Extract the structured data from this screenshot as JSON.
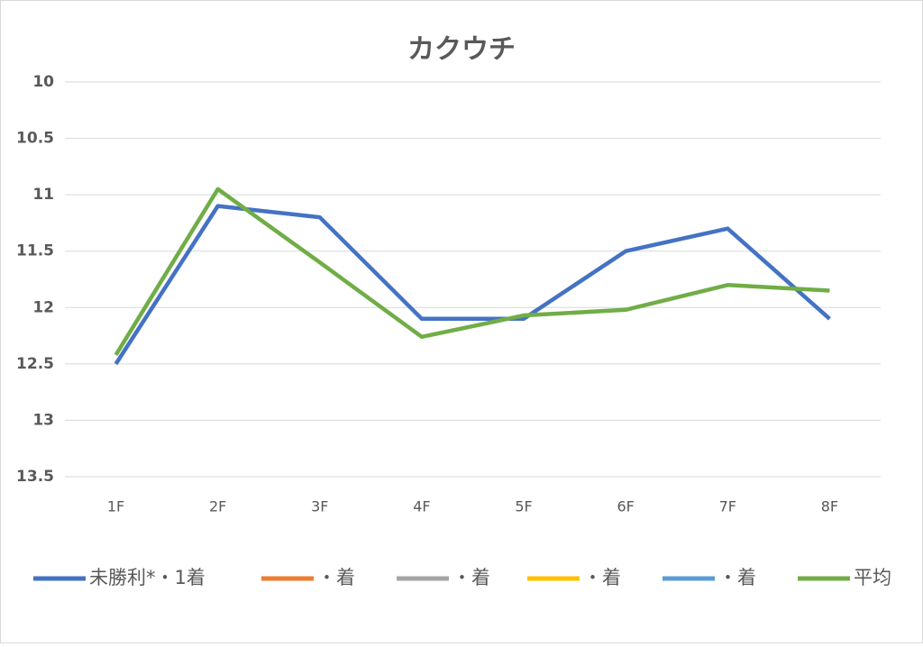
{
  "chart_data": {
    "type": "line",
    "title": "カクウチ",
    "categories": [
      "1F",
      "2F",
      "3F",
      "4F",
      "5F",
      "6F",
      "7F",
      "8F"
    ],
    "series": [
      {
        "name": "未勝利*・1着",
        "color": "#4472c4",
        "values": [
          12.5,
          11.1,
          11.2,
          12.1,
          12.1,
          11.5,
          11.3,
          12.1
        ]
      },
      {
        "name": "・着",
        "color": "#ed7d31",
        "values": [
          null,
          null,
          null,
          null,
          null,
          null,
          null,
          null
        ]
      },
      {
        "name": "・着",
        "color": "#a5a5a5",
        "values": [
          null,
          null,
          null,
          null,
          null,
          null,
          null,
          null
        ]
      },
      {
        "name": "・着",
        "color": "#ffc000",
        "values": [
          null,
          null,
          null,
          null,
          null,
          null,
          null,
          null
        ]
      },
      {
        "name": "・着",
        "color": "#5b9bd5",
        "values": [
          null,
          null,
          null,
          null,
          null,
          null,
          null,
          null
        ]
      },
      {
        "name": "平均",
        "color": "#70ad47",
        "values": [
          12.42,
          10.95,
          11.6,
          12.26,
          12.07,
          12.02,
          11.8,
          11.85
        ]
      }
    ],
    "ylim": [
      10,
      13.5
    ],
    "yticks": [
      10,
      10.5,
      11,
      11.5,
      12,
      12.5,
      13,
      13.5
    ],
    "y_inverted": true,
    "grid": true,
    "legend": "bottom"
  }
}
